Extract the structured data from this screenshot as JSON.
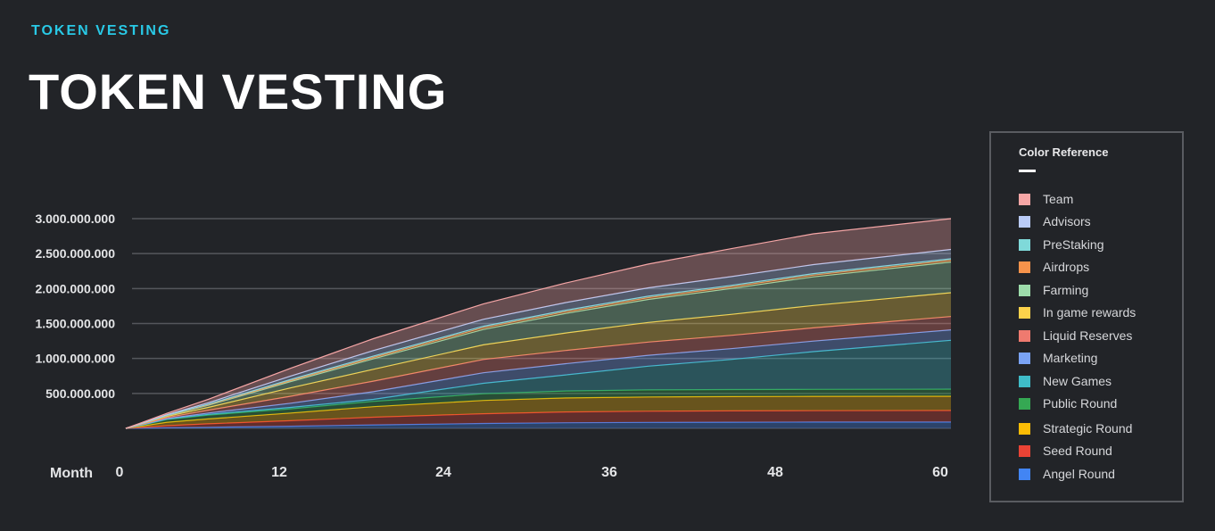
{
  "header": {
    "eyebrow": "TOKEN VESTING",
    "title": "TOKEN VESTING"
  },
  "legend": {
    "title": "Color Reference",
    "items": [
      {
        "label": "Team",
        "color": "#f6a6a6"
      },
      {
        "label": "Advisors",
        "color": "#b9cbf7"
      },
      {
        "label": "PreStaking",
        "color": "#7fd9d9"
      },
      {
        "label": "Airdrops",
        "color": "#f7934b"
      },
      {
        "label": "Farming",
        "color": "#9ddcab"
      },
      {
        "label": "In game rewards",
        "color": "#fcd24b"
      },
      {
        "label": "Liquid Reserves",
        "color": "#ef7a6f"
      },
      {
        "label": "Marketing",
        "color": "#7aa3f5"
      },
      {
        "label": "New Games",
        "color": "#3fbcc8"
      },
      {
        "label": "Public Round",
        "color": "#35a853"
      },
      {
        "label": "Strategic Round",
        "color": "#fbbc05"
      },
      {
        "label": "Seed Round",
        "color": "#ea4335"
      },
      {
        "label": "Angel Round",
        "color": "#4285f4"
      }
    ]
  },
  "chart_data": {
    "type": "area",
    "stacked": true,
    "xlabel": "Month",
    "x_ticks": [
      0,
      12,
      24,
      36,
      48,
      60
    ],
    "x_tick_labels": [
      "0",
      "12",
      "24",
      "36",
      "48",
      "60"
    ],
    "xlim": [
      0,
      60
    ],
    "ylim": [
      0,
      3000000000
    ],
    "y_ticks": [
      500000000,
      1000000000,
      1500000000,
      2000000000,
      2500000000,
      3000000000
    ],
    "y_tick_labels": [
      "500.000.000",
      "1.000.000.000",
      "1.500.000.000",
      "2.000.000.000",
      "2.500.000.000",
      "3.000.000.000"
    ],
    "grid": true,
    "legend_position": "right",
    "x": [
      0,
      1,
      3,
      6,
      12,
      18,
      26,
      32,
      38,
      44,
      50,
      60
    ],
    "series_order_bottom_to_top": [
      "Angel Round",
      "Seed Round",
      "Strategic Round",
      "Public Round",
      "New Games",
      "Marketing",
      "Liquid Reserves",
      "In game rewards",
      "Farming",
      "Airdrops",
      "PreStaking",
      "Advisors",
      "Team"
    ],
    "series": [
      {
        "name": "Angel Round",
        "values": [
          0,
          3000000,
          8000000,
          15000000,
          30000000,
          50000000,
          70000000,
          80000000,
          85000000,
          88000000,
          90000000,
          90000000
        ]
      },
      {
        "name": "Seed Round",
        "values": [
          0,
          10000000,
          30000000,
          50000000,
          80000000,
          110000000,
          140000000,
          155000000,
          160000000,
          162000000,
          163000000,
          165000000
        ]
      },
      {
        "name": "Strategic Round",
        "values": [
          0,
          15000000,
          50000000,
          70000000,
          110000000,
          150000000,
          190000000,
          200000000,
          205000000,
          205000000,
          205000000,
          205000000
        ]
      },
      {
        "name": "Public Round",
        "values": [
          0,
          10000000,
          40000000,
          55000000,
          60000000,
          75000000,
          95000000,
          100000000,
          100000000,
          100000000,
          100000000,
          100000000
        ]
      },
      {
        "name": "New Games",
        "values": [
          0,
          2000000,
          5000000,
          10000000,
          20000000,
          30000000,
          150000000,
          230000000,
          340000000,
          430000000,
          540000000,
          700000000
        ]
      },
      {
        "name": "Marketing",
        "values": [
          0,
          3000000,
          8000000,
          20000000,
          60000000,
          110000000,
          150000000,
          160000000,
          155000000,
          155000000,
          150000000,
          150000000
        ]
      },
      {
        "name": "Liquid Reserves",
        "values": [
          0,
          5000000,
          15000000,
          40000000,
          100000000,
          150000000,
          190000000,
          190000000,
          190000000,
          190000000,
          190000000,
          190000000
        ]
      },
      {
        "name": "In game rewards",
        "values": [
          0,
          5000000,
          15000000,
          40000000,
          120000000,
          170000000,
          210000000,
          250000000,
          280000000,
          300000000,
          320000000,
          340000000
        ]
      },
      {
        "name": "Farming",
        "values": [
          0,
          3000000,
          10000000,
          30000000,
          90000000,
          150000000,
          220000000,
          280000000,
          330000000,
          370000000,
          410000000,
          440000000
        ]
      },
      {
        "name": "Airdrops",
        "values": [
          0,
          1000000,
          3000000,
          8000000,
          15000000,
          20000000,
          25000000,
          25000000,
          25000000,
          25000000,
          25000000,
          25000000
        ]
      },
      {
        "name": "PreStaking",
        "values": [
          0,
          2000000,
          4000000,
          8000000,
          15000000,
          18000000,
          20000000,
          20000000,
          20000000,
          20000000,
          20000000,
          20000000
        ]
      },
      {
        "name": "Advisors",
        "values": [
          0,
          3000000,
          8000000,
          20000000,
          50000000,
          80000000,
          100000000,
          110000000,
          120000000,
          125000000,
          130000000,
          135000000
        ]
      },
      {
        "name": "Team",
        "values": [
          0,
          8000000,
          20000000,
          50000000,
          110000000,
          170000000,
          220000000,
          280000000,
          340000000,
          400000000,
          440000000,
          440000000
        ]
      }
    ]
  }
}
